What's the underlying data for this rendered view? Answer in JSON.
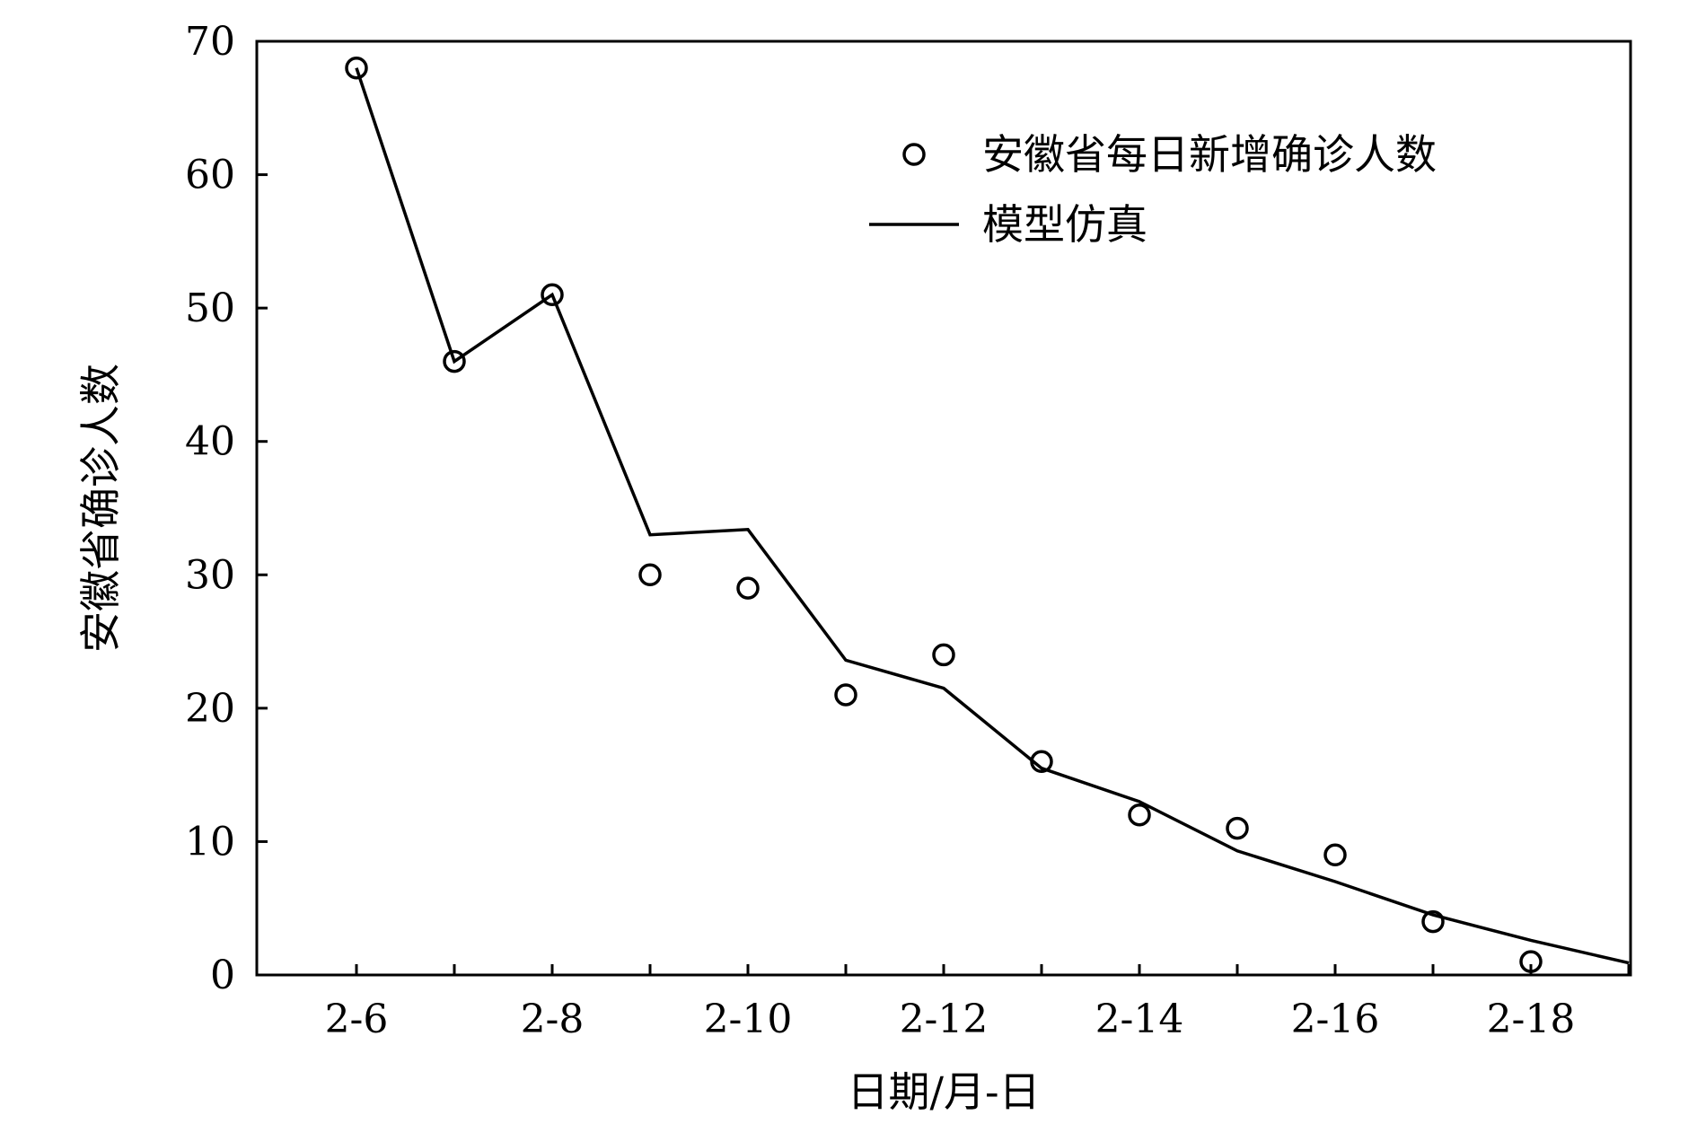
{
  "chart_data": {
    "type": "line",
    "xlabel": "日期/月-日",
    "ylabel": "安徽省确诊人数",
    "x": [
      "2-6",
      "2-7",
      "2-8",
      "2-9",
      "2-10",
      "2-11",
      "2-12",
      "2-13",
      "2-14",
      "2-15",
      "2-16",
      "2-17",
      "2-18",
      "2-19"
    ],
    "x_tick_labels": [
      "2-6",
      "2-8",
      "2-10",
      "2-12",
      "2-14",
      "2-16",
      "2-18"
    ],
    "y_ticks": [
      0,
      10,
      20,
      30,
      40,
      50,
      60,
      70
    ],
    "ylim": [
      0,
      70
    ],
    "grid": false,
    "legend_position": "top-right",
    "series": [
      {
        "name": "安徽省每日新增确诊人数",
        "type": "scatter",
        "marker": "circle",
        "x": [
          "2-6",
          "2-7",
          "2-8",
          "2-9",
          "2-10",
          "2-11",
          "2-12",
          "2-13",
          "2-14",
          "2-15",
          "2-16",
          "2-17",
          "2-18"
        ],
        "values": [
          68,
          46,
          51,
          30,
          29,
          21,
          24,
          16,
          12,
          11,
          9,
          4,
          1
        ]
      },
      {
        "name": "模型仿真",
        "type": "line",
        "x": [
          "2-6",
          "2-7",
          "2-8",
          "2-9",
          "2-10",
          "2-11",
          "2-12",
          "2-13",
          "2-14",
          "2-15",
          "2-16",
          "2-17",
          "2-18",
          "2-19"
        ],
        "values": [
          68,
          46,
          51,
          33,
          33.4,
          23.6,
          21.5,
          15.5,
          13,
          9.3,
          7,
          4.5,
          2.6,
          0.9
        ]
      }
    ],
    "colors": {
      "axis": "#000000",
      "line": "#000000",
      "marker": "#000000"
    }
  }
}
